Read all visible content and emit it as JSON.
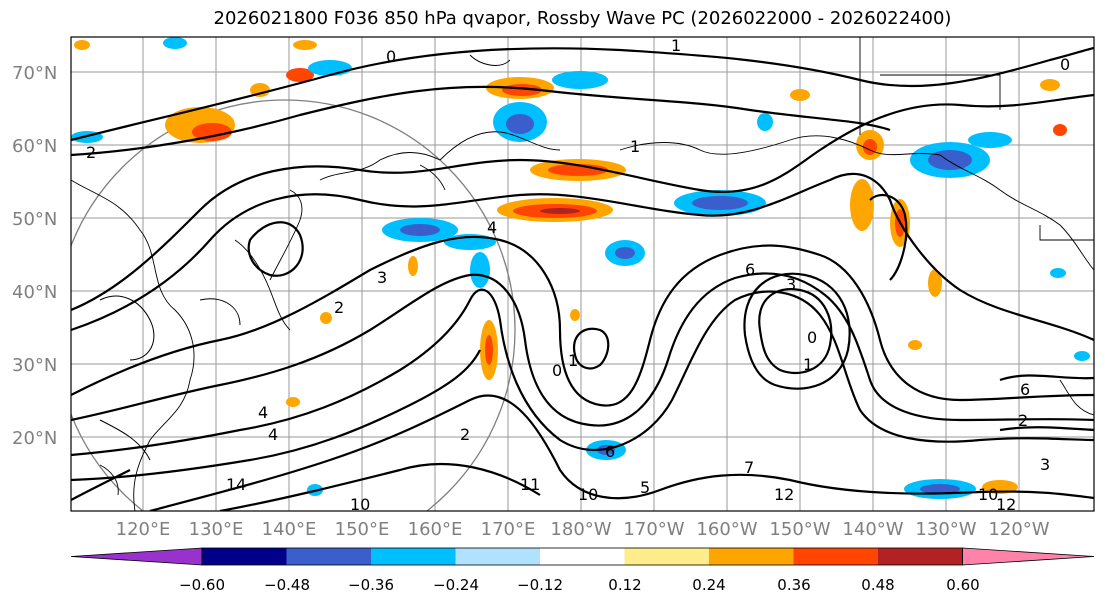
{
  "title": "2026021800 F036 850 hPa qvapor, Rossby Wave PC (2026022000 - 2026022400)",
  "latitude_labels": [
    "70°N",
    "60°N",
    "50°N",
    "40°N",
    "30°N",
    "20°N"
  ],
  "longitude_labels": [
    "120°E",
    "130°E",
    "140°E",
    "150°E",
    "160°E",
    "170°E",
    "180°W",
    "170°W",
    "160°W",
    "150°W",
    "140°W",
    "130°W",
    "120°W"
  ],
  "colorbar": {
    "tick_labels": [
      "−0.60",
      "−0.48",
      "−0.36",
      "−0.24",
      "−0.12",
      "0.12",
      "0.24",
      "0.36",
      "0.48",
      "0.60"
    ],
    "colors": [
      "#9932cc",
      "#00008b",
      "#3a5fcd",
      "#00bfff",
      "#b0e2ff",
      "#ffffff",
      "#ffec8b",
      "#ffa500",
      "#ff4500",
      "#b22222",
      "#ff82ab"
    ]
  },
  "contour_labels": [
    "1",
    "0",
    "0",
    "1",
    "2",
    "2",
    "4",
    "3",
    "6",
    "3",
    "0",
    "1",
    "2",
    "6",
    "4",
    "11",
    "10",
    "12",
    "14",
    "10",
    "12",
    "10",
    "1",
    "2",
    "4",
    "0",
    "7",
    "6",
    "5",
    "3"
  ]
}
